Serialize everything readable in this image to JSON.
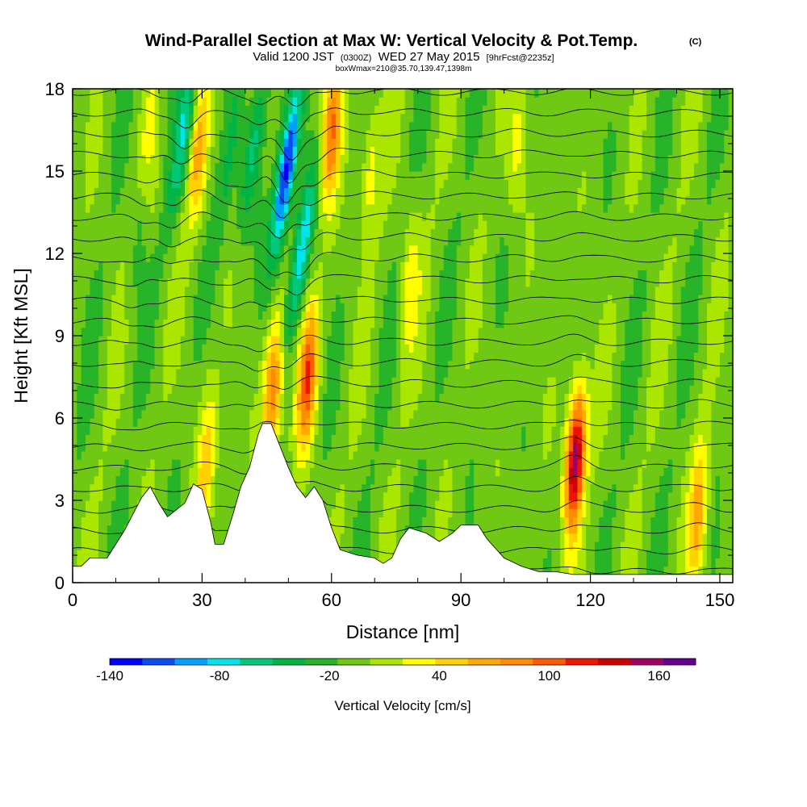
{
  "chart_data": {
    "type": "heatmap",
    "title": "Wind-Parallel Section at Max W: Vertical Velocity & Pot.Temp.",
    "title_mark": "(C)",
    "subtitle_parts": [
      "Valid 1200 JST",
      "(0300Z)",
      "WED 27 May 2015",
      "[9hrFcst@2235z]"
    ],
    "subtitle2": "boxWmax=210@35.70,139.47,1398m",
    "xlabel": "Distance [nm]",
    "ylabel": "Height [Kft MSL]",
    "xlim": [
      0,
      153
    ],
    "ylim": [
      0,
      18
    ],
    "x_ticks": [
      0,
      30,
      60,
      90,
      120,
      150
    ],
    "y_ticks": [
      0,
      3,
      6,
      9,
      12,
      15,
      18
    ],
    "x_tick_labels": [
      "0",
      "30",
      "60",
      "90",
      "120",
      "150"
    ],
    "y_tick_labels": [
      "0",
      "3",
      "6",
      "9",
      "12",
      "15",
      "18"
    ],
    "colorbar": {
      "title": "Vertical Velocity [cm/s]",
      "min": -140,
      "max": 180,
      "step": 20,
      "labels": [
        "-140",
        "-80",
        "-20",
        "40",
        "100",
        "160"
      ],
      "label_values": [
        -140,
        -80,
        -20,
        40,
        100,
        160
      ],
      "colors": [
        "#0000ff",
        "#0a4cf5",
        "#00a0ff",
        "#00e6e6",
        "#00c878",
        "#00b446",
        "#28b428",
        "#6ec814",
        "#aae600",
        "#ffff00",
        "#ffd200",
        "#ffaa00",
        "#ff8c00",
        "#ff5a00",
        "#f01400",
        "#cd0000",
        "#a00064",
        "#64008c"
      ]
    },
    "terrain": [
      [
        0,
        0.6
      ],
      [
        2,
        0.6
      ],
      [
        4,
        0.9
      ],
      [
        8,
        0.9
      ],
      [
        10,
        1.4
      ],
      [
        12,
        1.9
      ],
      [
        14,
        2.5
      ],
      [
        16,
        3.1
      ],
      [
        18,
        3.5
      ],
      [
        20,
        2.9
      ],
      [
        22,
        2.4
      ],
      [
        26,
        2.9
      ],
      [
        28,
        3.6
      ],
      [
        30,
        3.4
      ],
      [
        32,
        2.2
      ],
      [
        33,
        1.4
      ],
      [
        35,
        1.4
      ],
      [
        37,
        2.4
      ],
      [
        39,
        3.5
      ],
      [
        41,
        4.2
      ],
      [
        43,
        5.4
      ],
      [
        44,
        5.8
      ],
      [
        46,
        5.8
      ],
      [
        48,
        5.0
      ],
      [
        50,
        4.2
      ],
      [
        52,
        3.5
      ],
      [
        54,
        3.1
      ],
      [
        56,
        3.5
      ],
      [
        58,
        3.0
      ],
      [
        60,
        2.0
      ],
      [
        62,
        1.2
      ],
      [
        66,
        1.0
      ],
      [
        70,
        0.9
      ],
      [
        72,
        0.7
      ],
      [
        74,
        0.9
      ],
      [
        76,
        1.6
      ],
      [
        78,
        2.0
      ],
      [
        82,
        1.8
      ],
      [
        85,
        1.5
      ],
      [
        87,
        1.7
      ],
      [
        88,
        1.8
      ],
      [
        90,
        2.1
      ],
      [
        94,
        2.1
      ],
      [
        96,
        1.6
      ],
      [
        100,
        0.9
      ],
      [
        104,
        0.6
      ],
      [
        108,
        0.4
      ],
      [
        112,
        0.4
      ],
      [
        116,
        0.3
      ],
      [
        120,
        0.3
      ],
      [
        153,
        0.3
      ]
    ],
    "updrafts": [
      {
        "x": 116.5,
        "z": 4.5,
        "w": 190
      },
      {
        "x": 54.5,
        "z": 7.5,
        "w": 120
      },
      {
        "x": 46.5,
        "z": 7.0,
        "w": 110
      },
      {
        "x": 60,
        "z": 16.5,
        "w": 110
      },
      {
        "x": 29,
        "z": 15.5,
        "w": 70
      },
      {
        "x": 31,
        "z": 4.5,
        "w": 60
      },
      {
        "x": 145,
        "z": 2.5,
        "w": 80
      },
      {
        "x": 18,
        "z": 15.0,
        "w": 50
      },
      {
        "x": 78,
        "z": 11.0,
        "w": 45
      },
      {
        "x": 69,
        "z": 15.0,
        "w": 45
      },
      {
        "x": 103,
        "z": 16.0,
        "w": 40
      }
    ],
    "downdrafts": [
      {
        "x": 49.5,
        "z": 15.0,
        "w": -140
      },
      {
        "x": 53,
        "z": 12.0,
        "w": -80
      },
      {
        "x": 26,
        "z": 16.5,
        "w": -70
      },
      {
        "x": 42,
        "z": 16.0,
        "w": -60
      },
      {
        "x": 17,
        "z": 14.0,
        "w": -40
      },
      {
        "x": 36,
        "z": 15.0,
        "w": -30
      }
    ],
    "theta_contours": 24
  }
}
